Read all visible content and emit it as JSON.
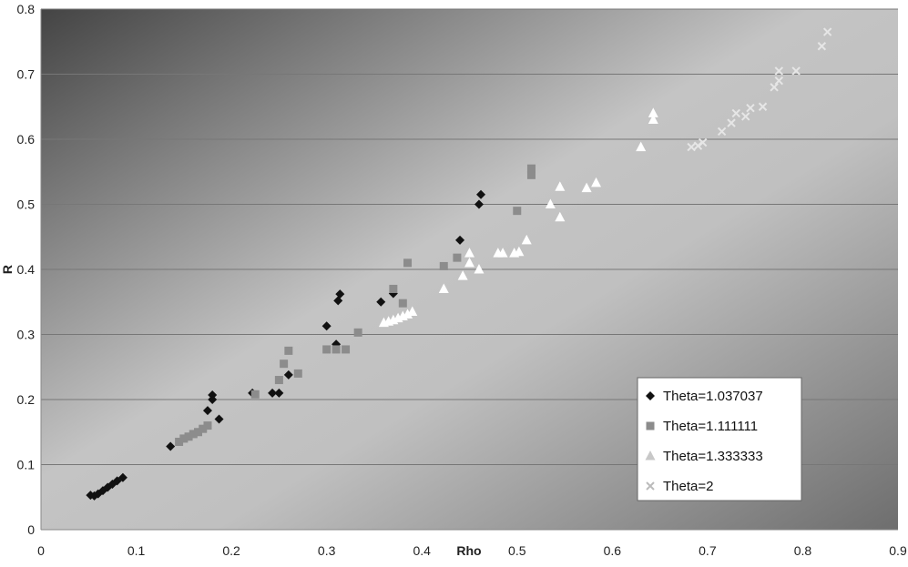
{
  "chart_data": {
    "type": "scatter",
    "title": "",
    "xlabel": "Rho",
    "ylabel": "R",
    "xlim": [
      0,
      0.9
    ],
    "ylim": [
      0,
      0.8
    ],
    "xticks": [
      "0",
      "0.1",
      "0.2",
      "0.3",
      "0.4",
      "0.5",
      "0.6",
      "0.7",
      "0.8",
      "0.9"
    ],
    "yticks": [
      "0",
      "0.1",
      "0.2",
      "0.3",
      "0.4",
      "0.5",
      "0.6",
      "0.7",
      "0.8"
    ],
    "grid": "horizontal",
    "legend_position": "bottom-right",
    "series": [
      {
        "name": "Theta=1.037037",
        "marker": "diamond",
        "color": "#111111",
        "points": [
          [
            0.052,
            0.053
          ],
          [
            0.056,
            0.052
          ],
          [
            0.06,
            0.055
          ],
          [
            0.065,
            0.06
          ],
          [
            0.07,
            0.065
          ],
          [
            0.075,
            0.07
          ],
          [
            0.08,
            0.075
          ],
          [
            0.086,
            0.08
          ],
          [
            0.136,
            0.128
          ],
          [
            0.175,
            0.183
          ],
          [
            0.18,
            0.2
          ],
          [
            0.18,
            0.207
          ],
          [
            0.187,
            0.17
          ],
          [
            0.222,
            0.21
          ],
          [
            0.243,
            0.21
          ],
          [
            0.25,
            0.21
          ],
          [
            0.26,
            0.238
          ],
          [
            0.3,
            0.313
          ],
          [
            0.31,
            0.285
          ],
          [
            0.312,
            0.352
          ],
          [
            0.314,
            0.362
          ],
          [
            0.357,
            0.35
          ],
          [
            0.37,
            0.363
          ],
          [
            0.44,
            0.445
          ],
          [
            0.46,
            0.5
          ],
          [
            0.462,
            0.515
          ]
        ]
      },
      {
        "name": "Theta=1.111111",
        "marker": "square",
        "color": "#8c8c8c",
        "points": [
          [
            0.145,
            0.135
          ],
          [
            0.15,
            0.14
          ],
          [
            0.155,
            0.143
          ],
          [
            0.16,
            0.147
          ],
          [
            0.165,
            0.15
          ],
          [
            0.17,
            0.155
          ],
          [
            0.175,
            0.16
          ],
          [
            0.225,
            0.208
          ],
          [
            0.25,
            0.23
          ],
          [
            0.255,
            0.255
          ],
          [
            0.26,
            0.275
          ],
          [
            0.27,
            0.24
          ],
          [
            0.3,
            0.277
          ],
          [
            0.31,
            0.277
          ],
          [
            0.32,
            0.277
          ],
          [
            0.333,
            0.303
          ],
          [
            0.37,
            0.37
          ],
          [
            0.38,
            0.348
          ],
          [
            0.385,
            0.41
          ],
          [
            0.423,
            0.405
          ],
          [
            0.437,
            0.418
          ],
          [
            0.5,
            0.49
          ],
          [
            0.515,
            0.545
          ],
          [
            0.515,
            0.555
          ]
        ]
      },
      {
        "name": "Theta=1.333333",
        "marker": "triangle",
        "color": "#ffffff",
        "points": [
          [
            0.36,
            0.318
          ],
          [
            0.365,
            0.32
          ],
          [
            0.37,
            0.322
          ],
          [
            0.375,
            0.325
          ],
          [
            0.38,
            0.328
          ],
          [
            0.385,
            0.331
          ],
          [
            0.39,
            0.335
          ],
          [
            0.423,
            0.37
          ],
          [
            0.443,
            0.39
          ],
          [
            0.45,
            0.41
          ],
          [
            0.45,
            0.425
          ],
          [
            0.46,
            0.4
          ],
          [
            0.48,
            0.425
          ],
          [
            0.485,
            0.425
          ],
          [
            0.497,
            0.425
          ],
          [
            0.502,
            0.427
          ],
          [
            0.51,
            0.445
          ],
          [
            0.535,
            0.5
          ],
          [
            0.545,
            0.527
          ],
          [
            0.545,
            0.48
          ],
          [
            0.573,
            0.525
          ],
          [
            0.583,
            0.533
          ],
          [
            0.63,
            0.588
          ],
          [
            0.643,
            0.63
          ],
          [
            0.643,
            0.64
          ]
        ]
      },
      {
        "name": "Theta=2",
        "marker": "cross",
        "color": "#e6e6e6",
        "points": [
          [
            0.683,
            0.588
          ],
          [
            0.69,
            0.59
          ],
          [
            0.695,
            0.595
          ],
          [
            0.715,
            0.612
          ],
          [
            0.725,
            0.625
          ],
          [
            0.73,
            0.64
          ],
          [
            0.74,
            0.635
          ],
          [
            0.745,
            0.648
          ],
          [
            0.758,
            0.65
          ],
          [
            0.77,
            0.68
          ],
          [
            0.775,
            0.69
          ],
          [
            0.775,
            0.705
          ],
          [
            0.793,
            0.705
          ],
          [
            0.82,
            0.743
          ],
          [
            0.826,
            0.765
          ]
        ]
      }
    ]
  }
}
